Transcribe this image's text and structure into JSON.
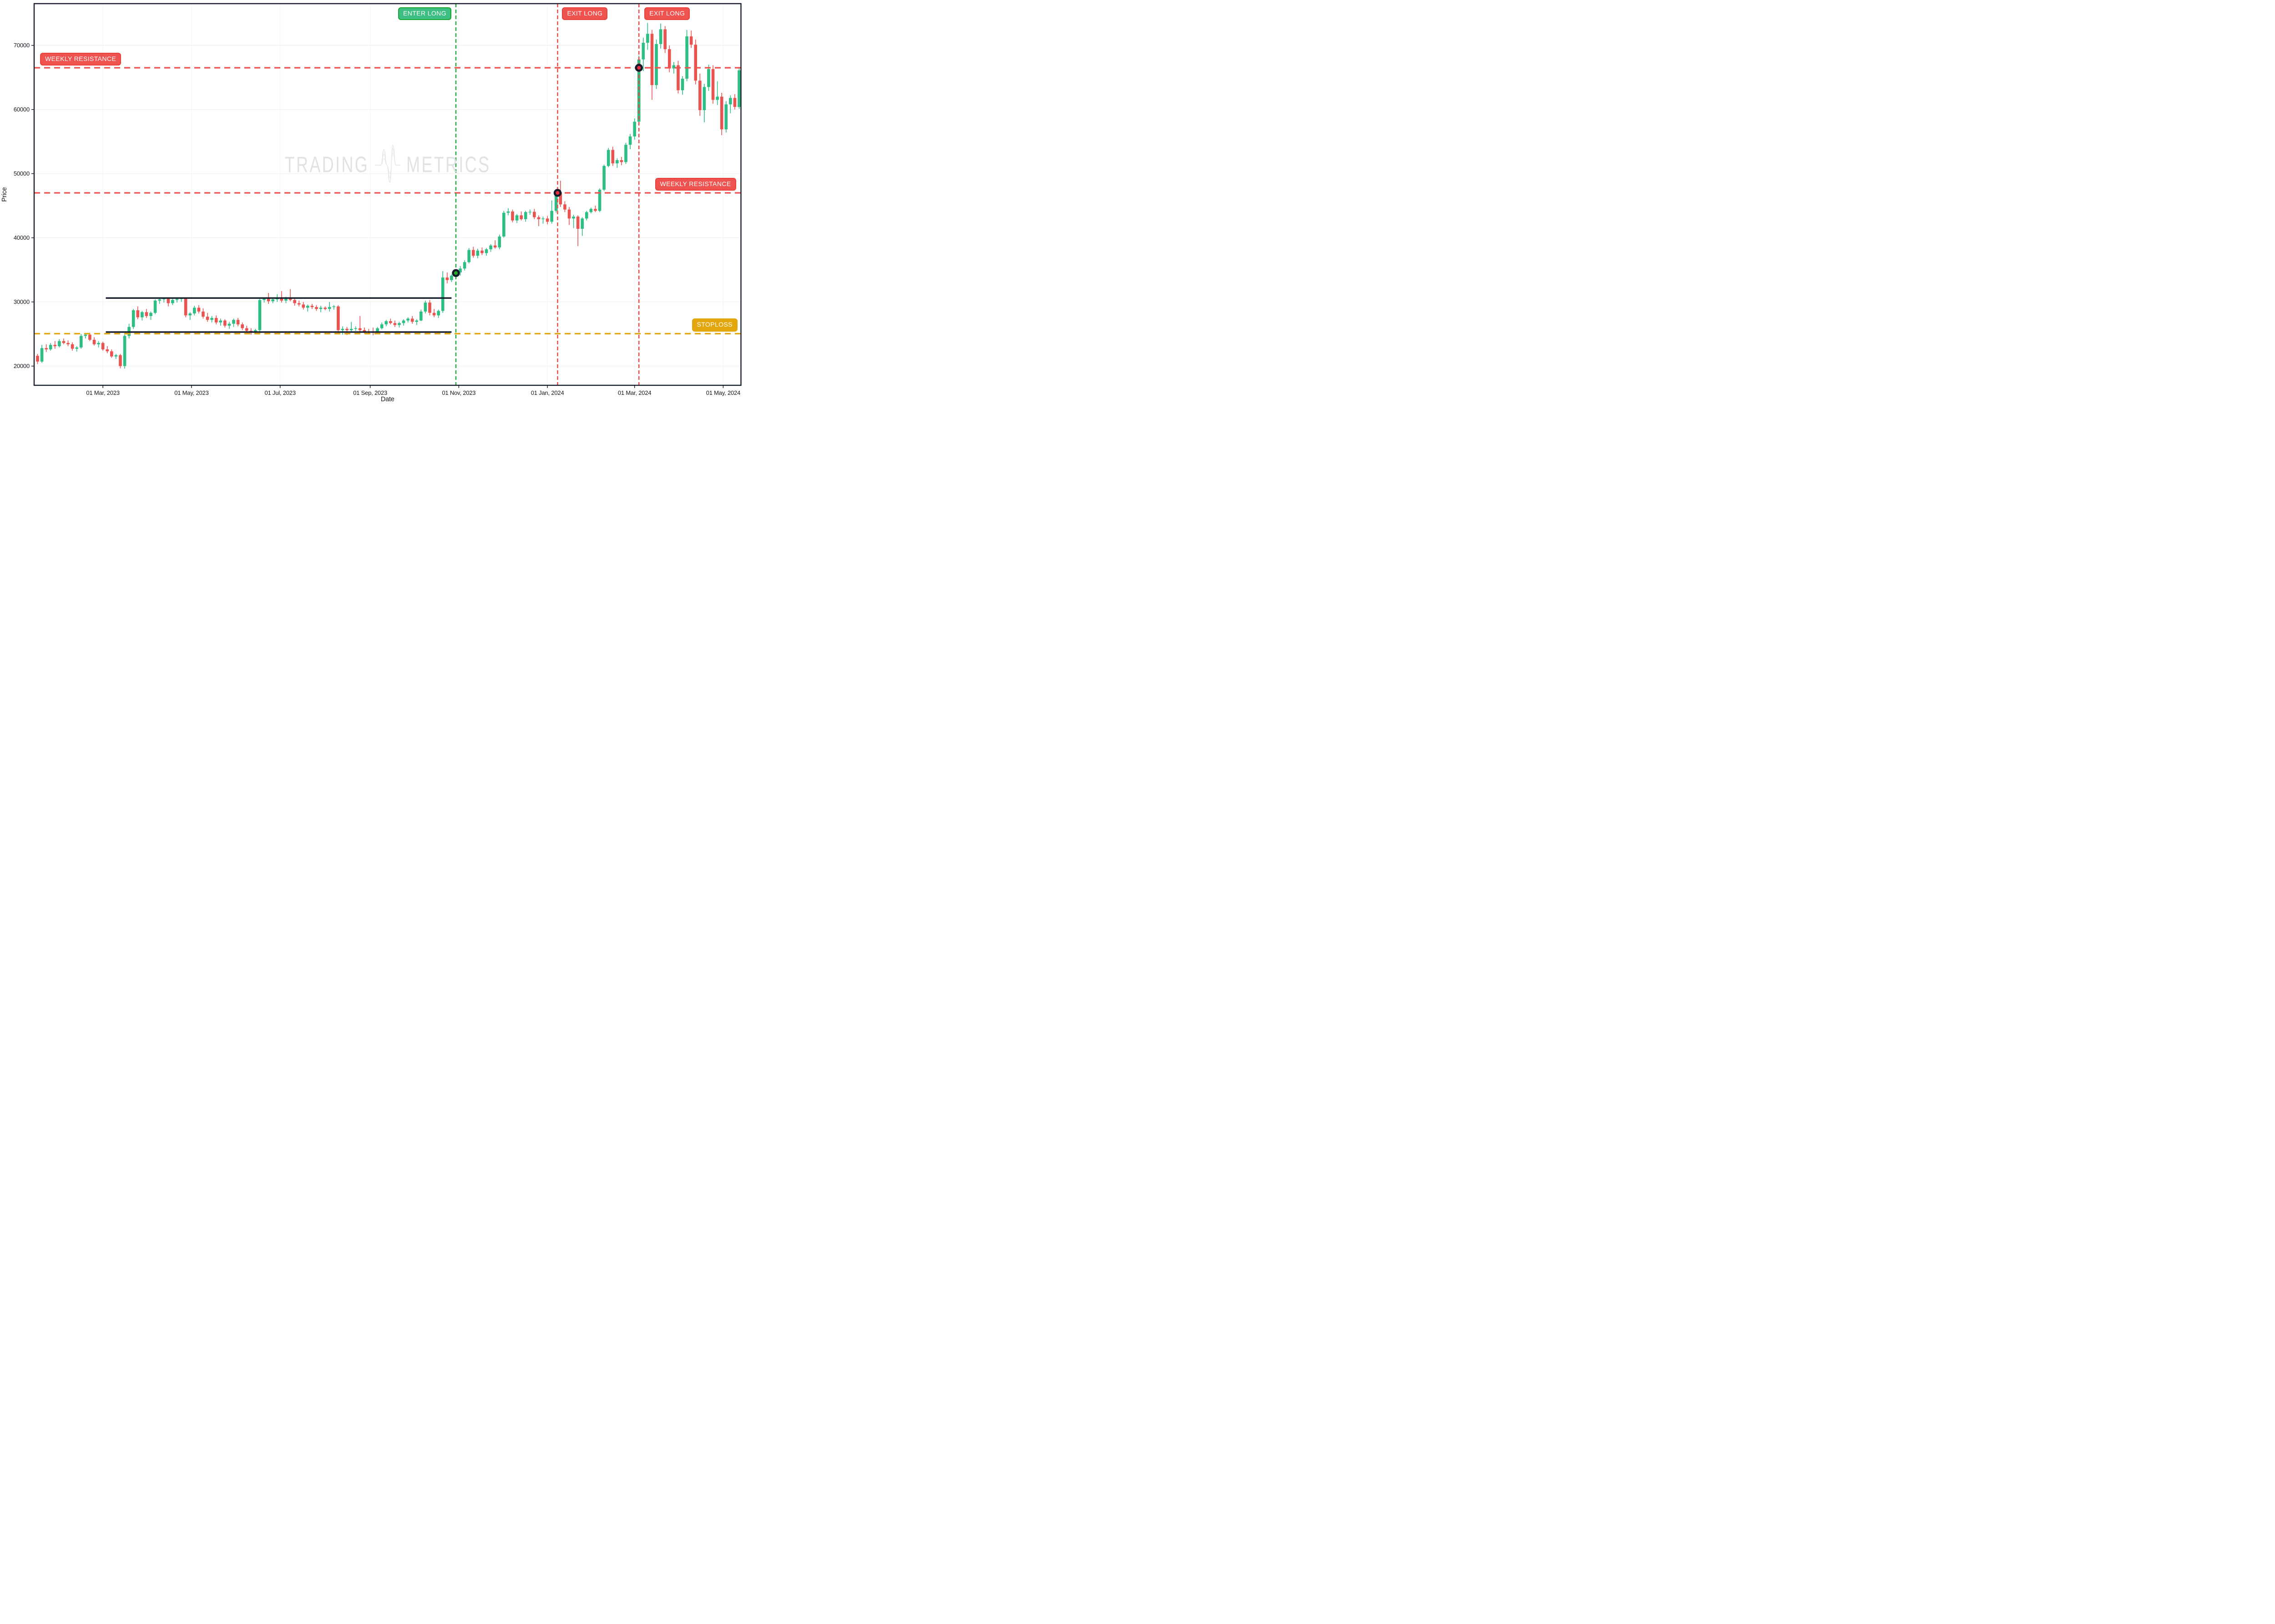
{
  "watermark": {
    "left": "TRADING",
    "right": "METRICS"
  },
  "axes": {
    "x_title": "Date",
    "y_title": "Price"
  },
  "chart_data": {
    "type": "candlestick",
    "xlabel": "Date",
    "ylabel": "Price",
    "ylim": [
      17000,
      76500
    ],
    "grid": true,
    "y_ticks": [
      20000,
      30000,
      40000,
      50000,
      60000,
      70000
    ],
    "x_ticks": [
      {
        "date": "2023-03-01",
        "label": "01 Mar, 2023"
      },
      {
        "date": "2023-05-01",
        "label": "01 May, 2023"
      },
      {
        "date": "2023-07-01",
        "label": "01 Jul, 2023"
      },
      {
        "date": "2023-09-01",
        "label": "01 Sep, 2023"
      },
      {
        "date": "2023-11-01",
        "label": "01 Nov, 2023"
      },
      {
        "date": "2024-01-01",
        "label": "01 Jan, 2024"
      },
      {
        "date": "2024-03-01",
        "label": "01 Mar, 2024"
      },
      {
        "date": "2024-05-01",
        "label": "01 May, 2024"
      }
    ],
    "colors": {
      "up": "#2dbe84",
      "down": "#ea5450",
      "dark": "#141b2a",
      "red_line": "#ef5350",
      "gold_line": "#e3a70d",
      "green_line": "#1ca83c",
      "red_vline": "#ef443e",
      "grid": "#efefef",
      "entry_marker": "#2aa62d",
      "exit_marker": "#e83043",
      "watermark": "#e2e2e2"
    },
    "start_date": "2023-01-15",
    "interval_days": 3,
    "candles_ohlc": [
      [
        21600,
        21900,
        20300,
        20700
      ],
      [
        20700,
        23300,
        20500,
        22800
      ],
      [
        22800,
        23400,
        22200,
        22600
      ],
      [
        22600,
        23600,
        22400,
        23300
      ],
      [
        23300,
        23900,
        22700,
        23100
      ],
      [
        23100,
        24200,
        22900,
        23900
      ],
      [
        23900,
        24300,
        23400,
        23600
      ],
      [
        23600,
        24000,
        23100,
        23400
      ],
      [
        23400,
        23700,
        22400,
        22700
      ],
      [
        22700,
        23100,
        22250,
        22900
      ],
      [
        22900,
        25000,
        22700,
        24700
      ],
      [
        24700,
        25100,
        24300,
        24900
      ],
      [
        24900,
        25200,
        23900,
        24100
      ],
      [
        24100,
        24500,
        23200,
        23400
      ],
      [
        23400,
        23900,
        22900,
        23600
      ],
      [
        23600,
        23800,
        22400,
        22600
      ],
      [
        22600,
        23100,
        22000,
        22300
      ],
      [
        22300,
        22600,
        21300,
        21500
      ],
      [
        21500,
        21900,
        21100,
        21700
      ],
      [
        21700,
        21900,
        19650,
        20000
      ],
      [
        20000,
        24900,
        19600,
        24700
      ],
      [
        24700,
        26600,
        24300,
        26100
      ],
      [
        26100,
        28900,
        25800,
        28700
      ],
      [
        28700,
        29300,
        27300,
        27600
      ],
      [
        27600,
        28600,
        27100,
        28400
      ],
      [
        28400,
        28900,
        27500,
        27800
      ],
      [
        27800,
        28500,
        27200,
        28300
      ],
      [
        28300,
        30400,
        28100,
        30200
      ],
      [
        30200,
        30700,
        29700,
        30400
      ],
      [
        30400,
        30650,
        29900,
        30500
      ],
      [
        30500,
        30600,
        29300,
        29800
      ],
      [
        29800,
        30600,
        29500,
        30300
      ],
      [
        30300,
        30650,
        29900,
        30450
      ],
      [
        30450,
        30700,
        30000,
        30550
      ],
      [
        30550,
        30600,
        27600,
        27900
      ],
      [
        27900,
        28400,
        27200,
        28200
      ],
      [
        28200,
        29400,
        27900,
        29100
      ],
      [
        29100,
        29500,
        28200,
        28500
      ],
      [
        28500,
        29000,
        27400,
        27700
      ],
      [
        27700,
        28300,
        26900,
        27200
      ],
      [
        27200,
        27800,
        26800,
        27500
      ],
      [
        27500,
        27900,
        26500,
        26800
      ],
      [
        26800,
        27400,
        26300,
        27100
      ],
      [
        27100,
        27300,
        26000,
        26300
      ],
      [
        26300,
        26900,
        25800,
        26600
      ],
      [
        26600,
        27400,
        26100,
        27200
      ],
      [
        27200,
        27500,
        26200,
        26500
      ],
      [
        26500,
        26800,
        25600,
        25900
      ],
      [
        25900,
        26300,
        25300,
        25500
      ],
      [
        25500,
        25900,
        24900,
        25300
      ],
      [
        25300,
        25800,
        24950,
        25600
      ],
      [
        25600,
        30500,
        25400,
        30300
      ],
      [
        30300,
        30700,
        29900,
        30500
      ],
      [
        30500,
        31400,
        29700,
        30100
      ],
      [
        30100,
        30600,
        29800,
        30400
      ],
      [
        30400,
        31200,
        30000,
        30600
      ],
      [
        30600,
        31700,
        29900,
        30200
      ],
      [
        30200,
        30800,
        29800,
        30500
      ],
      [
        30500,
        32000,
        30100,
        30300
      ],
      [
        30300,
        30600,
        29400,
        29800
      ],
      [
        29800,
        30200,
        29300,
        29600
      ],
      [
        29600,
        30000,
        28800,
        29100
      ],
      [
        29100,
        29600,
        28500,
        29400
      ],
      [
        29400,
        29700,
        28900,
        29200
      ],
      [
        29200,
        29500,
        28600,
        28900
      ],
      [
        28900,
        29400,
        28400,
        29100
      ],
      [
        29100,
        29300,
        28700,
        28900
      ],
      [
        28900,
        30000,
        28500,
        29200
      ],
      [
        29200,
        29500,
        28800,
        29300
      ],
      [
        29300,
        29500,
        25100,
        25600
      ],
      [
        25600,
        26200,
        24900,
        25800
      ],
      [
        25800,
        26100,
        24850,
        25600
      ],
      [
        25600,
        26900,
        25400,
        25800
      ],
      [
        25800,
        26200,
        25500,
        25900
      ],
      [
        25900,
        27800,
        25400,
        25600
      ],
      [
        25600,
        26000,
        25100,
        25400
      ],
      [
        25400,
        25800,
        25000,
        25300
      ],
      [
        25300,
        26000,
        24800,
        25200
      ],
      [
        25200,
        26100,
        25100,
        25900
      ],
      [
        25900,
        26800,
        25700,
        26500
      ],
      [
        26500,
        27200,
        26200,
        27000
      ],
      [
        27000,
        27400,
        26500,
        26700
      ],
      [
        26700,
        27100,
        26100,
        26400
      ],
      [
        26400,
        26900,
        26000,
        26700
      ],
      [
        26700,
        27300,
        26300,
        27100
      ],
      [
        27100,
        27600,
        26800,
        27400
      ],
      [
        27400,
        27800,
        26600,
        26900
      ],
      [
        26900,
        27300,
        26400,
        27100
      ],
      [
        27100,
        28800,
        27000,
        28500
      ],
      [
        28500,
        30200,
        28200,
        29900
      ],
      [
        29900,
        30300,
        27900,
        28300
      ],
      [
        28300,
        28900,
        27600,
        27900
      ],
      [
        27900,
        28800,
        27500,
        28600
      ],
      [
        28600,
        34800,
        28300,
        33800
      ],
      [
        33800,
        34600,
        32900,
        33400
      ],
      [
        33400,
        34300,
        33100,
        34100
      ],
      [
        34100,
        35000,
        33800,
        34600
      ],
      [
        34600,
        35600,
        34100,
        35200
      ],
      [
        35200,
        36500,
        34900,
        36200
      ],
      [
        36200,
        38400,
        36000,
        38100
      ],
      [
        38100,
        38600,
        36900,
        37200
      ],
      [
        37200,
        38300,
        36800,
        38000
      ],
      [
        38000,
        38500,
        37300,
        37600
      ],
      [
        37600,
        38400,
        37200,
        38200
      ],
      [
        38200,
        39000,
        37800,
        38800
      ],
      [
        38800,
        39600,
        38300,
        38500
      ],
      [
        38500,
        40500,
        38200,
        40200
      ],
      [
        40200,
        44200,
        40000,
        43900
      ],
      [
        43900,
        44600,
        43500,
        44100
      ],
      [
        44100,
        44400,
        42400,
        42700
      ],
      [
        42700,
        43700,
        42300,
        43500
      ],
      [
        43500,
        44100,
        42700,
        42900
      ],
      [
        42900,
        44200,
        42500,
        44000
      ],
      [
        44000,
        44400,
        43600,
        44050
      ],
      [
        44050,
        44500,
        42900,
        43200
      ],
      [
        43200,
        43500,
        41800,
        42900
      ],
      [
        42900,
        43300,
        42200,
        43000
      ],
      [
        43000,
        43400,
        42100,
        42500
      ],
      [
        42500,
        45800,
        42200,
        44200
      ],
      [
        44200,
        47500,
        43900,
        47100
      ],
      [
        47100,
        48900,
        44800,
        45200
      ],
      [
        45200,
        45700,
        44000,
        44400
      ],
      [
        44400,
        44800,
        42000,
        43000
      ],
      [
        43000,
        43600,
        41500,
        43300
      ],
      [
        43300,
        43500,
        38700,
        41400
      ],
      [
        41400,
        43200,
        40300,
        43000
      ],
      [
        43000,
        44200,
        42700,
        44000
      ],
      [
        44000,
        44700,
        43800,
        44500
      ],
      [
        44500,
        45000,
        44000,
        44200
      ],
      [
        44200,
        47700,
        44000,
        47500
      ],
      [
        47500,
        51400,
        47300,
        51200
      ],
      [
        51200,
        54000,
        51000,
        53700
      ],
      [
        53700,
        54200,
        51200,
        51600
      ],
      [
        51600,
        52400,
        50900,
        52100
      ],
      [
        52100,
        52600,
        51300,
        51800
      ],
      [
        51800,
        54800,
        51500,
        54500
      ],
      [
        54500,
        56200,
        53800,
        55800
      ],
      [
        55800,
        58600,
        55300,
        58100
      ],
      [
        58100,
        68400,
        57700,
        67800
      ],
      [
        67800,
        71200,
        66000,
        70400
      ],
      [
        70400,
        73500,
        69300,
        71800
      ],
      [
        71800,
        72400,
        61500,
        63800
      ],
      [
        63800,
        70900,
        63200,
        70200
      ],
      [
        70200,
        73400,
        69500,
        72500
      ],
      [
        72500,
        73000,
        68800,
        69400
      ],
      [
        69400,
        70000,
        65800,
        66400
      ],
      [
        66400,
        67400,
        65600,
        66900
      ],
      [
        66900,
        67600,
        62500,
        63000
      ],
      [
        63000,
        65200,
        62300,
        64800
      ],
      [
        64800,
        72400,
        64400,
        71400
      ],
      [
        71400,
        72300,
        69600,
        70100
      ],
      [
        70100,
        70900,
        63900,
        64500
      ],
      [
        64500,
        65600,
        59000,
        59900
      ],
      [
        59900,
        64000,
        58000,
        63500
      ],
      [
        63500,
        67000,
        62900,
        66300
      ],
      [
        66300,
        66900,
        60900,
        61500
      ],
      [
        61500,
        64400,
        60700,
        62000
      ],
      [
        62000,
        62600,
        56000,
        56900
      ],
      [
        56900,
        61300,
        56400,
        60800
      ],
      [
        60800,
        62200,
        59400,
        61800
      ],
      [
        61800,
        62400,
        60000,
        60400
      ],
      [
        60400,
        66400,
        60100,
        66100
      ]
    ],
    "hlines": [
      {
        "id": "weekly_resistance_1",
        "y": 66500,
        "color": "red",
        "label": "WEEKLY RESISTANCE",
        "label_side": "left"
      },
      {
        "id": "weekly_resistance_2",
        "y": 47000,
        "color": "red",
        "label": "WEEKLY RESISTANCE",
        "label_side": "right"
      },
      {
        "id": "stoploss",
        "y": 25050,
        "color": "gold",
        "label": "STOPLOSS",
        "label_side": "right"
      }
    ],
    "segments": [
      {
        "id": "resistance_level",
        "y": 30600,
        "date_start": "2023-03-03",
        "date_end": "2023-10-27"
      },
      {
        "id": "support_level",
        "y": 25300,
        "date_start": "2023-03-03",
        "date_end": "2023-10-27"
      }
    ],
    "vlines": [
      {
        "id": "enter_long",
        "date": "2023-10-30",
        "color": "green",
        "label": "ENTER LONG",
        "label_side": "left"
      },
      {
        "id": "exit_long_1",
        "date": "2024-01-08",
        "color": "red",
        "label": "EXIT LONG",
        "label_side": "right"
      },
      {
        "id": "exit_long_2",
        "date": "2024-03-04",
        "color": "red",
        "label": "EXIT LONG",
        "label_side": "right"
      }
    ],
    "markers": [
      {
        "id": "entry_marker",
        "date": "2023-10-30",
        "y": 34500,
        "kind": "entry"
      },
      {
        "id": "exit_marker_1",
        "date": "2024-01-08",
        "y": 47000,
        "kind": "exit"
      },
      {
        "id": "exit_marker_2",
        "date": "2024-03-04",
        "y": 66500,
        "kind": "exit"
      }
    ],
    "annotations": {
      "weekly_resistance_1": {
        "label": "WEEKLY RESISTANCE"
      },
      "weekly_resistance_2": {
        "label": "WEEKLY RESISTANCE"
      },
      "stoploss": {
        "label": "STOPLOSS"
      },
      "enter_long": {
        "label": "ENTER LONG"
      },
      "exit_long_1": {
        "label": "EXIT LONG"
      },
      "exit_long_2": {
        "label": "EXIT LONG"
      }
    }
  }
}
